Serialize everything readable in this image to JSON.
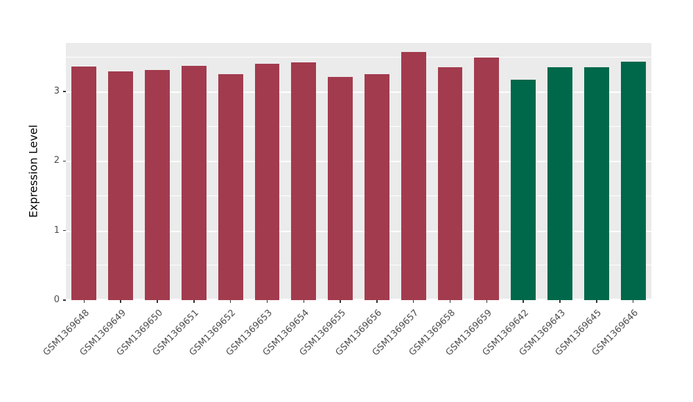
{
  "chart_data": {
    "type": "bar",
    "title": "",
    "ylabel": "Expression Level",
    "xlabel": "",
    "categories": [
      "GSM1369648",
      "GSM1369649",
      "GSM1369650",
      "GSM1369651",
      "GSM1369652",
      "GSM1369653",
      "GSM1369654",
      "GSM1369655",
      "GSM1369656",
      "GSM1369657",
      "GSM1369658",
      "GSM1369659",
      "GSM1369642",
      "GSM1369643",
      "GSM1369645",
      "GSM1369646"
    ],
    "values": [
      3.36,
      3.29,
      3.31,
      3.37,
      3.25,
      3.4,
      3.42,
      3.21,
      3.25,
      3.57,
      3.35,
      3.49,
      3.17,
      3.35,
      3.35,
      3.43
    ],
    "bar_groups": [
      0,
      0,
      0,
      0,
      0,
      0,
      0,
      0,
      0,
      0,
      0,
      0,
      1,
      1,
      1,
      1
    ],
    "group_colors": [
      "#A23B4E",
      "#00684A"
    ],
    "ylim": [
      0,
      3.7
    ],
    "yticks": [
      0,
      1,
      2,
      3
    ],
    "minor_ticks": [
      0.5,
      1.5,
      2.5,
      3.5
    ],
    "grid": true,
    "legend_position": "none",
    "panel_background": "#EBEBEB",
    "grid_color": "#FFFFFF",
    "axis_text_color": "#4D4D4D",
    "bar_width_ratio": 0.68
  }
}
